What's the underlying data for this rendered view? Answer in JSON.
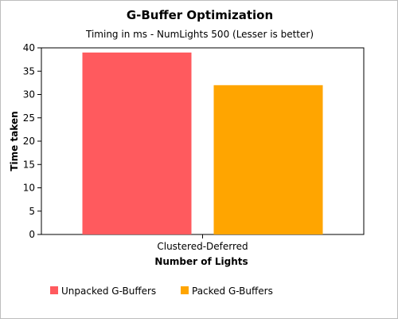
{
  "chart_data": {
    "type": "bar",
    "title": "G-Buffer Optimization",
    "subtitle": "Timing in ms - NumLights 500 (Lesser is better)",
    "xlabel": "Number of Lights",
    "ylabel": "Time taken",
    "categories": [
      "Clustered-Deferred"
    ],
    "series": [
      {
        "name": "Unpacked G-Buffers",
        "values": [
          39
        ],
        "color": "#ff5a5e"
      },
      {
        "name": "Packed G-Buffers",
        "values": [
          32
        ],
        "color": "#ffa500"
      }
    ],
    "ylim": [
      0,
      40
    ],
    "yticks": [
      "0",
      "5",
      "10",
      "15",
      "20",
      "25",
      "30",
      "35",
      "40"
    ],
    "grid": false,
    "legend_position": "bottom-left"
  }
}
